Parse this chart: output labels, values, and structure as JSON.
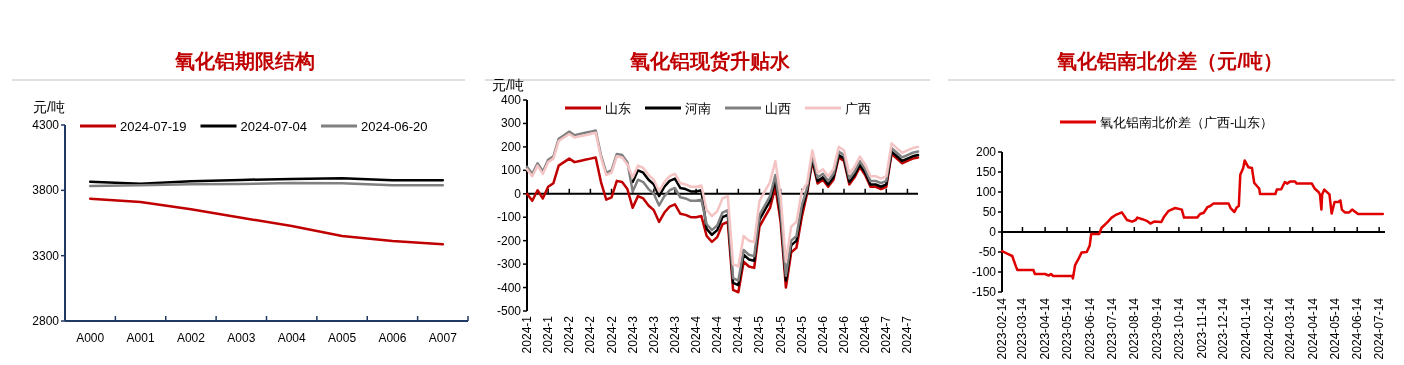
{
  "chart_data": [
    {
      "type": "line",
      "title": "氧化铝期限结构",
      "ylabel": "元/吨",
      "legend": "top",
      "categories": [
        "A000",
        "A001",
        "A002",
        "A003",
        "A004",
        "A005",
        "A006",
        "A007"
      ],
      "ylim": [
        2800,
        4300
      ],
      "yticks": [
        2800,
        3300,
        3800,
        4300
      ],
      "series": [
        {
          "name": "2024-07-19",
          "color": "#c00000",
          "values": [
            3736,
            3710,
            3655,
            3590,
            3527,
            3450,
            3412,
            3387
          ]
        },
        {
          "name": "2024-07-04",
          "color": "#000000",
          "values": [
            3866,
            3851,
            3870,
            3880,
            3887,
            3892,
            3877,
            3877
          ]
        },
        {
          "name": "2024-06-20",
          "color": "#808080",
          "values": [
            3833,
            3838,
            3846,
            3848,
            3856,
            3854,
            3838,
            3838
          ]
        }
      ]
    },
    {
      "type": "line",
      "title": "氧化铝现货升贴水",
      "ylabel": "元/吨",
      "legend": "top",
      "categories": [
        "2024-1",
        null,
        null,
        null,
        "2024-1",
        null,
        null,
        null,
        "2024-2",
        null,
        null,
        null,
        "2024-2",
        null,
        null,
        null,
        "2024-2",
        null,
        null,
        null,
        "2024-3",
        null,
        null,
        null,
        "2024-3",
        null,
        null,
        null,
        "2024-3",
        null,
        null,
        null,
        "2024-4",
        null,
        null,
        null,
        "2024-4",
        null,
        null,
        null,
        "2024-4",
        null,
        null,
        null,
        "2024-5",
        null,
        null,
        null,
        "2024-5",
        null,
        null,
        null,
        "2024-5",
        null,
        null,
        null,
        "2024-6",
        null,
        null,
        null,
        "2024-6",
        null,
        null,
        null,
        "2024-6",
        null,
        null,
        null,
        "2024-7",
        null,
        null,
        null,
        "2024-7",
        null,
        null
      ],
      "ylim": [
        -500,
        400
      ],
      "yticks": [
        -500,
        -400,
        -300,
        -200,
        -100,
        0,
        100,
        200,
        300,
        400
      ],
      "series": [
        {
          "name": "山东",
          "color": "#c00000",
          "values": [
            0,
            -30,
            15,
            -20,
            30,
            45,
            120,
            135,
            150,
            135,
            140,
            145,
            150,
            155,
            50,
            -25,
            -15,
            55,
            50,
            20,
            -60,
            -10,
            -20,
            -50,
            -70,
            -120,
            -80,
            -55,
            -45,
            -85,
            -90,
            -100,
            -100,
            -95,
            -180,
            -205,
            -185,
            -130,
            -120,
            -410,
            -420,
            -290,
            -310,
            -316,
            -140,
            -100,
            -60,
            30,
            -120,
            -400,
            -250,
            -230,
            -100,
            0,
            140,
            44,
            60,
            30,
            60,
            155,
            140,
            40,
            70,
            114,
            80,
            30,
            30,
            20,
            30,
            170,
            150,
            130,
            140,
            150,
            155
          ]
        },
        {
          "name": "河南",
          "color": "#000000",
          "values": [
            null,
            null,
            null,
            null,
            null,
            null,
            null,
            null,
            null,
            null,
            null,
            null,
            null,
            null,
            null,
            null,
            null,
            null,
            null,
            null,
            50,
            100,
            90,
            60,
            40,
            -10,
            30,
            55,
            65,
            25,
            20,
            10,
            10,
            15,
            -150,
            -175,
            -155,
            -100,
            -90,
            -380,
            -390,
            -260,
            -280,
            -286,
            -110,
            -70,
            -30,
            60,
            -90,
            -370,
            -220,
            -200,
            -70,
            10,
            150,
            54,
            70,
            40,
            70,
            165,
            150,
            50,
            80,
            124,
            90,
            40,
            40,
            30,
            40,
            180,
            160,
            140,
            150,
            160,
            165
          ]
        },
        {
          "name": "山西",
          "color": "#808080",
          "values": [
            115,
            85,
            130,
            95,
            145,
            160,
            235,
            250,
            265,
            250,
            255,
            260,
            265,
            270,
            165,
            90,
            100,
            170,
            165,
            135,
            10,
            60,
            50,
            20,
            0,
            -50,
            -10,
            15,
            25,
            -15,
            -20,
            -30,
            -30,
            -25,
            -130,
            -155,
            -135,
            -80,
            -70,
            -360,
            -370,
            -240,
            -260,
            -266,
            -90,
            -50,
            -10,
            80,
            -70,
            -350,
            -200,
            -180,
            -50,
            25,
            165,
            69,
            85,
            55,
            85,
            180,
            165,
            65,
            95,
            139,
            105,
            55,
            55,
            45,
            55,
            195,
            175,
            155,
            165,
            175,
            180
          ]
        },
        {
          "name": "广西",
          "color": "#f4c4c4",
          "values": [
            105,
            75,
            120,
            85,
            135,
            150,
            225,
            240,
            255,
            240,
            245,
            250,
            255,
            260,
            155,
            80,
            90,
            160,
            155,
            125,
            70,
            120,
            110,
            80,
            60,
            10,
            50,
            75,
            85,
            45,
            40,
            30,
            30,
            35,
            -70,
            -95,
            -75,
            -20,
            -10,
            -300,
            -310,
            -180,
            -200,
            -206,
            -30,
            10,
            50,
            140,
            -10,
            -290,
            -140,
            -120,
            10,
            45,
            185,
            89,
            105,
            75,
            105,
            200,
            185,
            85,
            115,
            159,
            125,
            75,
            75,
            65,
            75,
            215,
            195,
            175,
            185,
            195,
            200
          ]
        }
      ]
    },
    {
      "type": "line",
      "title": "氧化铝南北价差（元/吨）",
      "legend": "top",
      "x": [
        "2023-02-14",
        "2023-02-21",
        "2023-02-28",
        "2023-03-05",
        "2023-03-07",
        "2023-03-29",
        "2023-03-31",
        "2023-04-14",
        "2023-04-19",
        "2023-04-22",
        "2023-04-25",
        "2023-05-21",
        "2023-05-22",
        "2023-05-25",
        "2023-05-30",
        "2023-06-03",
        "2023-06-10",
        "2023-06-14",
        "2023-06-16",
        "2023-06-27",
        "2023-06-30",
        "2023-07-08",
        "2023-07-14",
        "2023-07-19",
        "2023-07-28",
        "2023-08-04",
        "2023-08-11",
        "2023-08-16",
        "2023-08-18",
        "2023-08-25",
        "2023-08-31",
        "2023-09-05",
        "2023-09-10",
        "2023-09-20",
        "2023-09-24",
        "2023-09-30",
        "2023-10-09",
        "2023-10-18",
        "2023-10-21",
        "2023-11-08",
        "2023-11-12",
        "2023-11-17",
        "2023-11-22",
        "2023-11-26",
        "2023-11-30",
        "2023-12-21",
        "2023-12-24",
        "2023-12-29",
        "2024-01-01",
        "2024-01-04",
        "2024-01-06",
        "2024-01-10",
        "2024-01-12",
        "2024-01-14",
        "2024-01-17",
        "2024-01-22",
        "2024-01-25",
        "2024-02-01",
        "2024-02-02",
        "2024-02-23",
        "2024-02-25",
        "2024-03-02",
        "2024-03-07",
        "2024-03-10",
        "2024-03-14",
        "2024-03-21",
        "2024-03-23",
        "2024-04-13",
        "2024-04-17",
        "2024-04-22",
        "2024-04-24",
        "2024-04-26",
        "2024-04-27",
        "2024-04-30",
        "2024-05-07",
        "2024-05-10",
        "2024-05-14",
        "2024-05-19",
        "2024-05-22",
        "2024-05-24",
        "2024-05-28",
        "2024-06-03",
        "2024-06-07",
        "2024-06-15",
        "2024-07-19"
      ],
      "xlim": [
        "2023-02-14",
        "2024-07-22"
      ],
      "xticks": [
        "2023-02-14",
        "2023-03-14",
        "2023-04-14",
        "2023-05-14",
        "2023-06-14",
        "2023-07-14",
        "2023-08-14",
        "2023-09-14",
        "2023-10-14",
        "2023-11-14",
        "2023-12-14",
        "2024-01-14",
        "2024-02-14",
        "2024-03-14",
        "2024-04-14",
        "2024-05-14",
        "2024-06-14",
        "2024-07-14"
      ],
      "ylim": [
        -150,
        200
      ],
      "yticks": [
        -150,
        -100,
        -50,
        0,
        50,
        100,
        150,
        200
      ],
      "series": [
        {
          "name": "氧化铝南北价差（广西-山东）",
          "color": "#e00000",
          "values": [
            -48,
            -54,
            -60,
            -86,
            -95,
            -95,
            -105,
            -105,
            -109,
            -105,
            -110,
            -110,
            -116,
            -83,
            -66,
            -51,
            -50,
            -34,
            -5,
            -5,
            10,
            24,
            36,
            42,
            49,
            30,
            26,
            30,
            36,
            32,
            28,
            21,
            26,
            25,
            39,
            53,
            60,
            56,
            36,
            36,
            45,
            48,
            62,
            65,
            71,
            71,
            59,
            50,
            61,
            65,
            143,
            160,
            179,
            172,
            162,
            160,
            123,
            108,
            95,
            95,
            106,
            107,
            125,
            121,
            126,
            126,
            121,
            121,
            108,
            100,
            94,
            56,
            94,
            106,
            94,
            46,
            75,
            75,
            79,
            56,
            49,
            49,
            56,
            45,
            45
          ]
        }
      ]
    }
  ]
}
